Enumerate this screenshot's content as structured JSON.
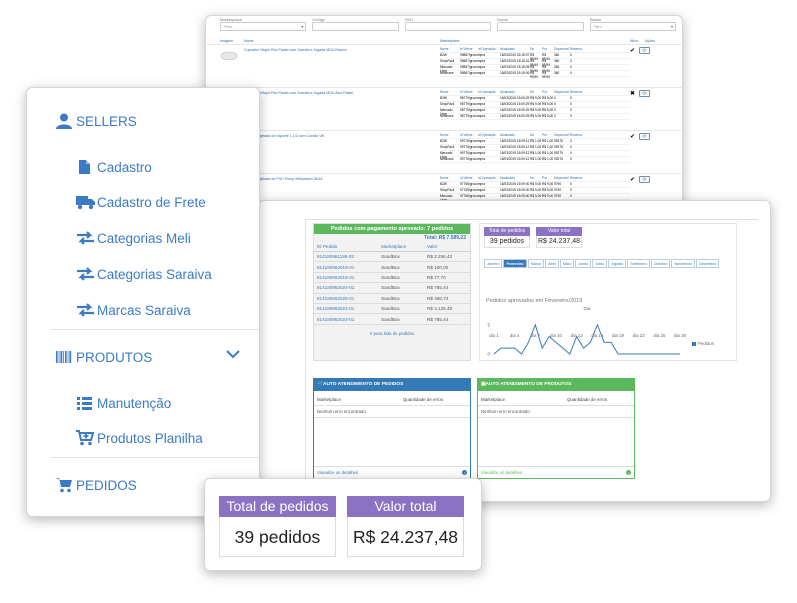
{
  "top_table": {
    "filters": [
      {
        "label": "Marketplace",
        "value": "Filtro",
        "dropdown": true
      },
      {
        "label": "Código",
        "value": "",
        "dropdown": false
      },
      {
        "label": "SKU",
        "value": "",
        "dropdown": false
      },
      {
        "label": "Nome",
        "value": "",
        "dropdown": false
      },
      {
        "label": "Status",
        "value": "Filtro",
        "dropdown": true
      }
    ],
    "headers": {
      "image": "Imagem",
      "name": "Nome",
      "marketplace": "Marketplace",
      "active": "Ativo",
      "actions": "Ações"
    },
    "sub_headers": [
      "Nome",
      "Id Vitrine",
      "Id Operação",
      "Atualizado",
      "De",
      "Por",
      "Disponível",
      "Reserva"
    ],
    "products": [
      {
        "name": "Cuprador Vitaph Rex Pastel com Garrafa e Jogada MDU Branco",
        "active_mark": "✔",
        "rows": [
          [
            "B2W",
            "99887/grocompra",
            "",
            "15/03/2019 15:15:07",
            "R$ 99,90",
            "R$ 59,90",
            "360",
            "0"
          ],
          [
            "ShopFacil",
            "99887/grocompra",
            "",
            "15/03/2019 15:15:31",
            "R$ 99,90",
            "R$ 59,90",
            "360",
            "0"
          ],
          [
            "Mercado Livre",
            "99887/grocompra",
            "",
            "15/03/2019 15:15:09",
            "R$ 99,90",
            "R$ 59,90",
            "360",
            "0"
          ],
          [
            "Netshoes",
            "99887/grocompra",
            "",
            "15/03/2019 15:15:09",
            "R$ 99,90",
            "R$ 59,90",
            "360",
            "0"
          ]
        ]
      },
      {
        "name": "Cuprador Vitaph Rex Pastel com Garrafa e Jogada MDU Azul Pastel",
        "active_mark": "✖",
        "rows": [
          [
            "B2W",
            "98779/grocompra",
            "",
            "15/03/2019 15:09:29",
            "R$ 9,00",
            "R$ 5,00",
            "0",
            "0"
          ],
          [
            "ShopFacil",
            "98779/grocompra",
            "",
            "15/03/2019 15:09:29",
            "R$ 9,00",
            "R$ 5,00",
            "0",
            "0"
          ],
          [
            "Mercado Livre",
            "98779/grocompra",
            "",
            "15/03/2019 15:09:29",
            "R$ 9,00",
            "R$ 5,00",
            "0",
            "0"
          ],
          [
            "Netshoes",
            "98779/grocompra",
            "",
            "15/03/2019 15:09:29",
            "R$ 9,00",
            "R$ 5,00",
            "0",
            "0"
          ]
        ]
      },
      {
        "name": "Produto Injetado de Esporte 1.1/3 com Cordão Vill",
        "active_mark": "✔",
        "rows": [
          [
            "B2W",
            "99776/grocompra",
            "",
            "15/03/2019 15:09:12",
            "R$ 1,00",
            "R$ 1,00",
            "99275",
            "0"
          ],
          [
            "ShopFacil",
            "99776/grocompra",
            "",
            "15/03/2019 15:09:12",
            "R$ 1,00",
            "R$ 1,00",
            "99275",
            "0"
          ],
          [
            "Mercado Livre",
            "99776/grocompra",
            "",
            "15/03/2019 15:09:12",
            "R$ 1,00",
            "R$ 1,00",
            "99275",
            "0"
          ],
          [
            "Netshoes",
            "99776/grocompra",
            "",
            "15/03/2019 15:09:12",
            "R$ 1,00",
            "R$ 1,00",
            "99275",
            "0"
          ]
        ]
      },
      {
        "name": "Produto Injetado de PVC Pump Williamson 08/18",
        "active_mark": "✔",
        "rows": [
          [
            "B2W",
            "97765/grocompra",
            "",
            "15/03/2019 15:09:00",
            "R$ 9,00",
            "R$ 9,00",
            "9790",
            "0"
          ],
          [
            "ShopFacil",
            "97765/grocompra",
            "",
            "15/03/2019 15:09:00",
            "R$ 9,00",
            "R$ 9,00",
            "9790",
            "0"
          ],
          [
            "Mercado Livre",
            "97765/grocompra",
            "",
            "15/03/2019 15:09:00",
            "R$ 9,00",
            "R$ 9,00",
            "9790",
            "0"
          ],
          [
            "Netshoes",
            "97765/grocompra",
            "",
            "15/03/2019 15:09:00",
            "R$ 9,00",
            "R$ 9,00",
            "9790",
            "0"
          ]
        ]
      }
    ]
  },
  "orders_panel": {
    "title": "Pedidos com pagamento aprovado: 7 pedidos",
    "total": "Total: R$ 7.589,22",
    "columns": [
      "ID Pedido",
      "Marketplace",
      "Valor"
    ],
    "rows": [
      [
        "814180961186-02",
        "SandBox",
        "R$ 2.256,42"
      ],
      [
        "814180962019-01",
        "SandBox",
        "R$ 100,00"
      ],
      [
        "814180962018-01",
        "SandBox",
        "R$ 77,70"
      ],
      [
        "814180962024-01",
        "SandBox",
        "R$ 785,44"
      ],
      [
        "814180962026-01",
        "SandBox",
        "R$ 458,74"
      ],
      [
        "814180962022-01",
        "SandBox",
        "R$ 3.125,48"
      ],
      [
        "814180962023-01",
        "SandBox",
        "R$ 785,44"
      ]
    ],
    "link": "Ir para lista de pedidos"
  },
  "stats_panel": {
    "total_orders_label": "Total de pedidos",
    "total_orders_value": "39 pedidos",
    "total_value_label": "Valor total",
    "total_value_value": "R$ 24.237,48",
    "months": [
      "Janeiro",
      "Fevereiro",
      "Março",
      "Abril",
      "Maio",
      "Junho",
      "Julho",
      "Agosto",
      "Setembro",
      "Outubro",
      "Novembro",
      "Dezembro"
    ],
    "active_month": "Fevereiro",
    "chart_title": "Pedidos aprovados em Fevereiro/2019"
  },
  "chart_data": {
    "type": "line",
    "title": "Pedidos aprovados em Fevereiro/2019",
    "xlabel": "Dia",
    "ylabel": "",
    "x_ticks": [
      "dia 1",
      "dia 4",
      "dia 7",
      "dia 10",
      "dia 13",
      "dia 16",
      "dia 19",
      "dia 22",
      "dia 25",
      "dia 28"
    ],
    "y_ticks": [
      0,
      5
    ],
    "ylim": [
      0,
      6
    ],
    "xlim": [
      1,
      28
    ],
    "legend": "right",
    "grid": false,
    "series": [
      {
        "name": "Pedidos",
        "color": "#3a7ab8",
        "x": [
          1,
          2,
          3,
          4,
          5,
          6,
          7,
          8,
          9,
          10,
          11,
          12,
          13,
          14,
          15,
          16,
          17,
          18,
          19,
          20,
          21,
          22,
          23,
          24,
          25,
          26,
          27,
          28
        ],
        "y": [
          0,
          1,
          1,
          1,
          0,
          2,
          5,
          1,
          3,
          2,
          1,
          0,
          3,
          1,
          2,
          5,
          2,
          2,
          0,
          0,
          0,
          0,
          0,
          0,
          0,
          0,
          0,
          0
        ]
      }
    ]
  },
  "auto_orders": {
    "title": "AUTO ATENDIMENTO DE PEDIDOS",
    "col_marketplace": "Marketplace",
    "col_errors": "Quantidade de erros",
    "empty": "Nenhum erro encontrado",
    "link": "Visualize os detalhes",
    "color": "#337ab7"
  },
  "auto_products": {
    "title": "AUTO ATENDIMENTO DE PRODUTOS",
    "col_marketplace": "Marketplace",
    "col_errors": "Quantidade de erros",
    "empty": "Nenhum erro encontrado",
    "link": "Visualize os detalhes",
    "color": "#5cb85c"
  },
  "sidebar": {
    "sellers": {
      "label": "SELLERS",
      "icon": "user-icon"
    },
    "sellers_items": [
      {
        "label": "Cadastro",
        "icon": "file-icon"
      },
      {
        "label": "Cadastro de Frete",
        "icon": "truck-icon"
      },
      {
        "label": "Categorias Meli",
        "icon": "exchange-icon"
      },
      {
        "label": "Categorias Saraiva",
        "icon": "exchange-icon"
      },
      {
        "label": "Marcas Saraiva",
        "icon": "exchange-icon"
      }
    ],
    "produtos": {
      "label": "PRODUTOS",
      "icon": "barcode-icon"
    },
    "produtos_items": [
      {
        "label": "Manutenção",
        "icon": "list-icon"
      },
      {
        "label": "Produtos Planilha",
        "icon": "cart-plus-icon"
      }
    ],
    "pedidos": {
      "label": "PEDIDOS",
      "icon": "cart-icon"
    },
    "accent": "#3b7bc4"
  },
  "summary": {
    "total_orders_label": "Total de pedidos",
    "total_orders_value": "39 pedidos",
    "total_value_label": "Valor total",
    "total_value_value": "R$ 24.237,48",
    "header_color": "#8b72c2"
  }
}
